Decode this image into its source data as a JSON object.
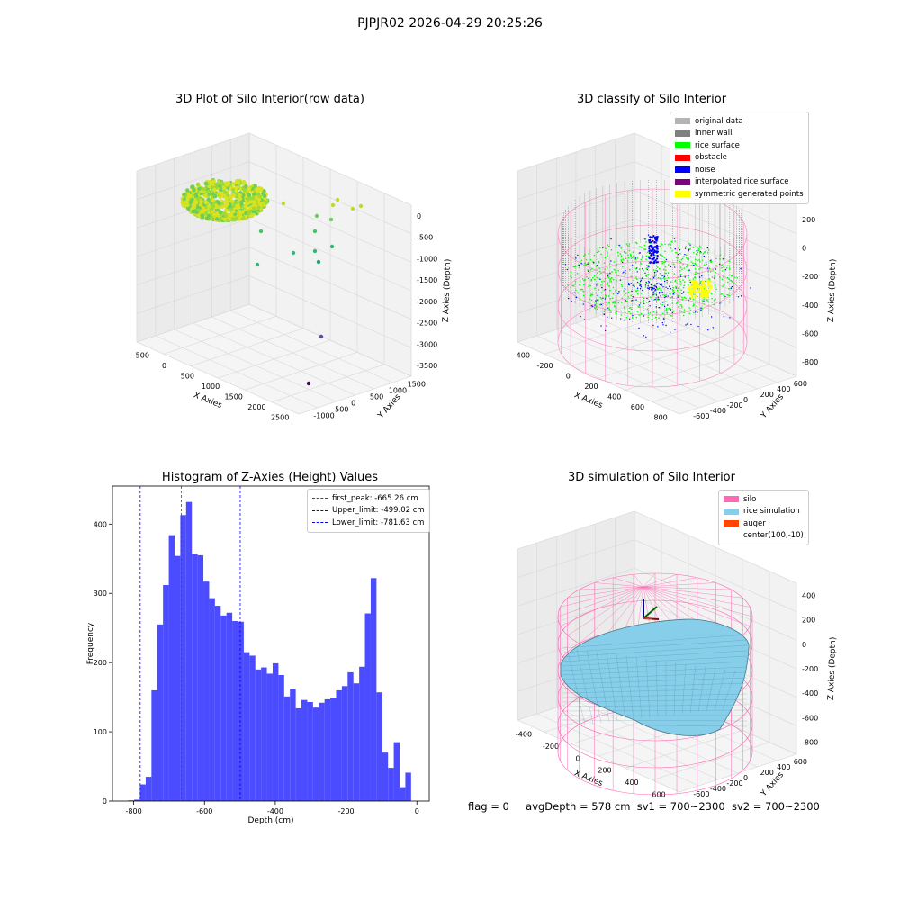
{
  "suptitle": "PJPJR02 2026-04-29 20:25:26",
  "plots": {
    "raw": {
      "title": "3D Plot of Silo Interior(row data)",
      "xlabel": "X Axies",
      "ylabel": "Y Axies",
      "zlabel": "Z Axies (Depth)",
      "xticks": [
        "-500",
        "0",
        "500",
        "1000",
        "1500",
        "2000",
        "2500"
      ],
      "yticks": [
        "-1000",
        "-500",
        "0",
        "500",
        "1000",
        "1500"
      ],
      "zticks": [
        "0",
        "-500",
        "-1000",
        "-1500",
        "-2000",
        "-2500",
        "-3000",
        "-3500"
      ]
    },
    "classify": {
      "title": "3D classify of Silo Interior",
      "xlabel": "X Axies",
      "ylabel": "Y Axies",
      "zlabel": "Z Axies (Depth)",
      "xticks": [
        "-400",
        "-200",
        "0",
        "200",
        "400",
        "600",
        "800"
      ],
      "yticks": [
        "-600",
        "-400",
        "-200",
        "0",
        "200",
        "400",
        "600"
      ],
      "zticks": [
        "200",
        "0",
        "-200",
        "-400",
        "-600",
        "-800"
      ],
      "legend": [
        {
          "label": "original data",
          "color": "#b4b4b4"
        },
        {
          "label": "inner wall",
          "color": "#808080"
        },
        {
          "label": "rice surface",
          "color": "#00ff00"
        },
        {
          "label": "obstacle",
          "color": "#ff0000"
        },
        {
          "label": "noise",
          "color": "#0000ff"
        },
        {
          "label": "interpolated rice surface",
          "color": "#800080"
        },
        {
          "label": "symmetric generated points",
          "color": "#ffff00"
        }
      ]
    },
    "simulation": {
      "title": "3D simulation of Silo Interior",
      "xlabel": "X Axies",
      "ylabel": "Y Axies",
      "zlabel": "Z Axies (Depth)",
      "xticks": [
        "-400",
        "-200",
        "0",
        "200",
        "400",
        "600"
      ],
      "yticks": [
        "-600",
        "-400",
        "-200",
        "0",
        "200",
        "400",
        "600"
      ],
      "zticks": [
        "400",
        "200",
        "0",
        "-200",
        "-400",
        "-600",
        "-800"
      ],
      "legend": [
        {
          "label": "silo",
          "color": "#ff69b4"
        },
        {
          "label": "rice simulation",
          "color": "#87ceeb"
        },
        {
          "label": "auger",
          "color": "#ff4500"
        },
        {
          "label": "center(100,-10)",
          "color": ""
        }
      ]
    }
  },
  "chart_data": {
    "type": "bar",
    "title": "Histogram of Z-Axies (Height) Values",
    "xlabel": "Depth (cm)",
    "ylabel": "Frequency",
    "xlim": [
      -860,
      35
    ],
    "ylim": [
      0,
      455
    ],
    "bar_color": "#4b4bff",
    "xticks": [
      -800,
      -600,
      -400,
      -200,
      0
    ],
    "yticks": [
      0,
      100,
      200,
      300,
      400
    ],
    "bin_start": -815,
    "bin_width": 16.3,
    "values": [
      1,
      2,
      24,
      35,
      160,
      255,
      312,
      384,
      354,
      413,
      432,
      357,
      355,
      317,
      293,
      282,
      268,
      272,
      260,
      259,
      215,
      210,
      190,
      193,
      184,
      199,
      182,
      151,
      162,
      134,
      146,
      143,
      135,
      142,
      147,
      149,
      160,
      166,
      186,
      170,
      194,
      271,
      322,
      157,
      70,
      48,
      85,
      20,
      41
    ],
    "lines": [
      {
        "label": "first_peak: -665.26 cm",
        "x": -665.26,
        "color": "#ff0000"
      },
      {
        "label": "Upper_limit: -499.02 cm",
        "x": -499.02,
        "color": "#0000ff"
      },
      {
        "label": "Lower_limit: -781.63 cm",
        "x": -781.63,
        "color": "#0000ff"
      }
    ],
    "legend_position": "top-right"
  },
  "footer": {
    "flag": "flag = 0",
    "avg": "avgDepth = 578 cm",
    "sv1": "sv1 = 700~2300",
    "sv2": "sv2 = 700~2300"
  }
}
